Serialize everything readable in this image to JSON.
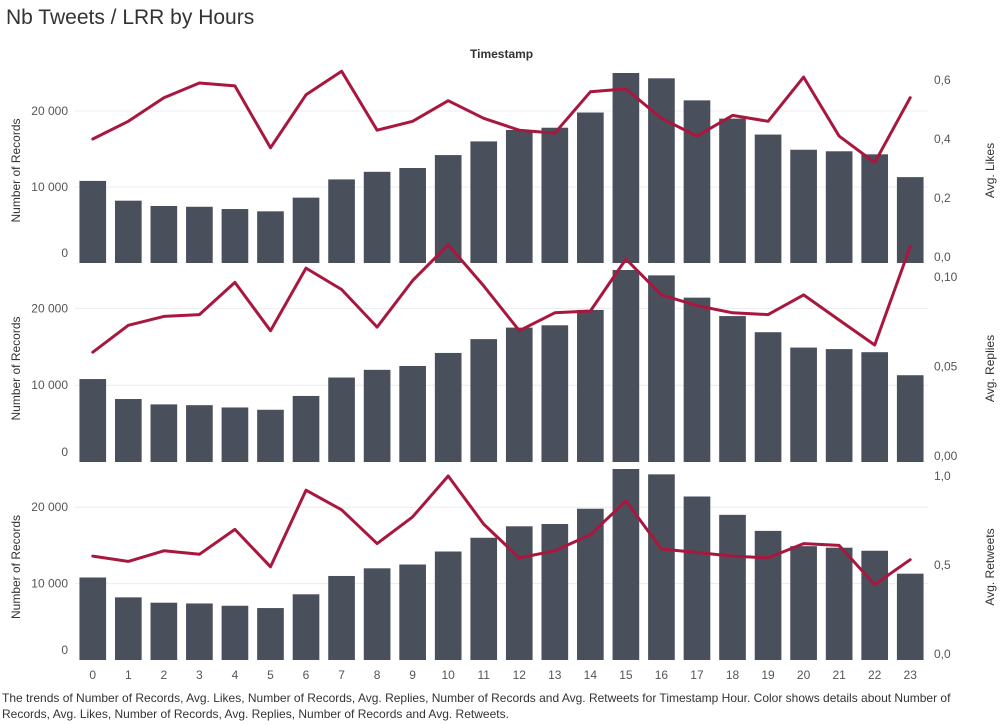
{
  "title": "Nb Tweets / LRR by Hours",
  "column_header": "Timestamp",
  "caption": "The trends of Number of Records, Avg. Likes, Number of Records, Avg. Replies, Number of Records and Avg. Retweets for Timestamp Hour.  Color shows details about Number of Records, Avg. Likes, Number of Records, Avg. Replies, Number of Records and Avg. Retweets.",
  "colors": {
    "bar": "#4a4f5c",
    "line": "#a8173e",
    "grid": "#ececec"
  },
  "chart_data": [
    {
      "type": "bar+line",
      "x": [
        "0",
        "1",
        "2",
        "3",
        "4",
        "5",
        "6",
        "7",
        "8",
        "9",
        "10",
        "11",
        "12",
        "13",
        "14",
        "15",
        "16",
        "17",
        "18",
        "19",
        "20",
        "21",
        "22",
        "23"
      ],
      "bar_series": {
        "name": "Number of Records",
        "values": [
          10800,
          8200,
          7500,
          7400,
          7100,
          6800,
          8600,
          11000,
          12000,
          12500,
          14200,
          16000,
          17500,
          17800,
          19800,
          25000,
          24300,
          21400,
          19000,
          16900,
          14900,
          14700,
          14300,
          11300
        ]
      },
      "line_series": {
        "name": "Avg. Likes",
        "values": [
          0.4,
          0.46,
          0.54,
          0.59,
          0.58,
          0.37,
          0.55,
          0.63,
          0.43,
          0.46,
          0.53,
          0.47,
          0.43,
          0.42,
          0.56,
          0.57,
          0.47,
          0.41,
          0.48,
          0.46,
          0.61,
          0.41,
          0.32,
          0.54
        ]
      },
      "ylabel_left": "Number of Records",
      "ylabel_right": "Avg. Likes",
      "yticks_left": [
        "0",
        "10 000",
        "20 000"
      ],
      "yticks_right": [
        "0,0",
        "0,2",
        "0,4",
        "0,6"
      ],
      "ylim_left": [
        0,
        25000
      ],
      "ylim_right": [
        0,
        0.6
      ]
    },
    {
      "type": "bar+line",
      "x": [
        "0",
        "1",
        "2",
        "3",
        "4",
        "5",
        "6",
        "7",
        "8",
        "9",
        "10",
        "11",
        "12",
        "13",
        "14",
        "15",
        "16",
        "17",
        "18",
        "19",
        "20",
        "21",
        "22",
        "23"
      ],
      "bar_series": {
        "name": "Number of Records",
        "values": [
          10800,
          8200,
          7500,
          7400,
          7100,
          6800,
          8600,
          11000,
          12000,
          12500,
          14200,
          16000,
          17500,
          17800,
          19800,
          25000,
          24300,
          21400,
          19000,
          16900,
          14900,
          14700,
          14300,
          11300
        ]
      },
      "line_series": {
        "name": "Avg. Replies",
        "values": [
          0.058,
          0.073,
          0.078,
          0.079,
          0.097,
          0.07,
          0.105,
          0.093,
          0.072,
          0.098,
          0.118,
          0.095,
          0.07,
          0.08,
          0.081,
          0.11,
          0.09,
          0.084,
          0.08,
          0.079,
          0.09,
          0.076,
          0.062,
          0.117
        ]
      },
      "ylabel_left": "Number of Records",
      "ylabel_right": "Avg. Replies",
      "yticks_left": [
        "0",
        "10 000",
        "20 000"
      ],
      "yticks_right": [
        "0,00",
        "0,05",
        "0,10"
      ],
      "ylim_left": [
        0,
        25000
      ],
      "ylim_right": [
        0,
        0.1
      ]
    },
    {
      "type": "bar+line",
      "x": [
        "0",
        "1",
        "2",
        "3",
        "4",
        "5",
        "6",
        "7",
        "8",
        "9",
        "10",
        "11",
        "12",
        "13",
        "14",
        "15",
        "16",
        "17",
        "18",
        "19",
        "20",
        "21",
        "22",
        "23"
      ],
      "bar_series": {
        "name": "Number of Records",
        "values": [
          10800,
          8200,
          7500,
          7400,
          7100,
          6800,
          8600,
          11000,
          12000,
          12500,
          14200,
          16000,
          17500,
          17800,
          19800,
          25000,
          24300,
          21400,
          19000,
          16900,
          14900,
          14700,
          14300,
          11300
        ]
      },
      "line_series": {
        "name": "Avg. Retweets",
        "values": [
          0.55,
          0.52,
          0.58,
          0.56,
          0.7,
          0.49,
          0.92,
          0.81,
          0.62,
          0.77,
          1.0,
          0.73,
          0.54,
          0.58,
          0.67,
          0.86,
          0.59,
          0.57,
          0.55,
          0.54,
          0.62,
          0.61,
          0.39,
          0.53
        ]
      },
      "ylabel_left": "Number of Records",
      "ylabel_right": "Avg. Retweets",
      "yticks_left": [
        "0",
        "10 000",
        "20 000"
      ],
      "yticks_right": [
        "0,0",
        "0,5",
        "1,0"
      ],
      "ylim_left": [
        0,
        25000
      ],
      "ylim_right": [
        0,
        1.0
      ]
    }
  ]
}
